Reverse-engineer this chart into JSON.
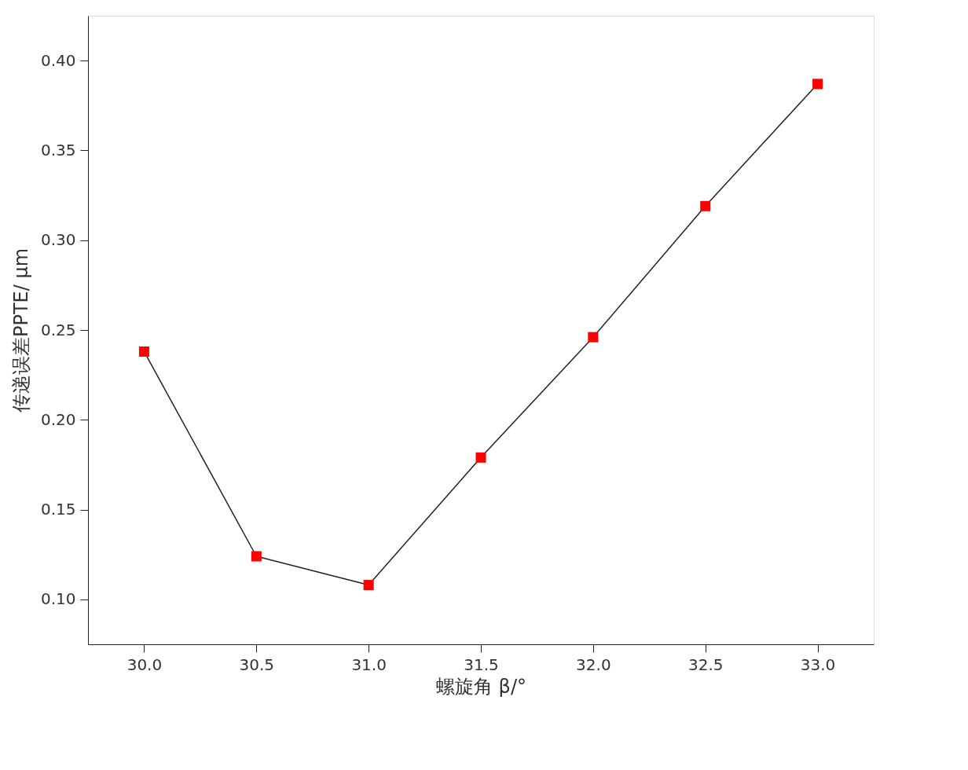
{
  "chart_data": {
    "type": "line",
    "xlabel": "螺旋角 β/°",
    "ylabel": "传递误差PPTE/ μm",
    "x": [
      30.0,
      30.5,
      31.0,
      31.5,
      32.0,
      32.5,
      33.0
    ],
    "series": [
      {
        "color": "#ff0000",
        "values": [
          0.238,
          0.124,
          0.108,
          0.179,
          0.246,
          0.319,
          0.387
        ]
      }
    ],
    "xlim": [
      29.75,
      33.25
    ],
    "ylim": [
      0.075,
      0.425
    ],
    "xticks": [
      {
        "value": 30.0,
        "label": "30.0"
      },
      {
        "value": 30.5,
        "label": "30.5"
      },
      {
        "value": 31.0,
        "label": "31.0"
      },
      {
        "value": 31.5,
        "label": "31.5"
      },
      {
        "value": 32.0,
        "label": "32.0"
      },
      {
        "value": 32.5,
        "label": "32.5"
      },
      {
        "value": 33.0,
        "label": "33.0"
      }
    ],
    "yticks": [
      {
        "value": 0.1,
        "label": "0.10"
      },
      {
        "value": 0.15,
        "label": "0.15"
      },
      {
        "value": 0.2,
        "label": "0.20"
      },
      {
        "value": 0.25,
        "label": "0.25"
      },
      {
        "value": 0.3,
        "label": "0.30"
      },
      {
        "value": 0.35,
        "label": "0.35"
      },
      {
        "value": 0.4,
        "label": "0.40"
      }
    ],
    "marker": "square",
    "line_style": "solid",
    "grid": false
  }
}
